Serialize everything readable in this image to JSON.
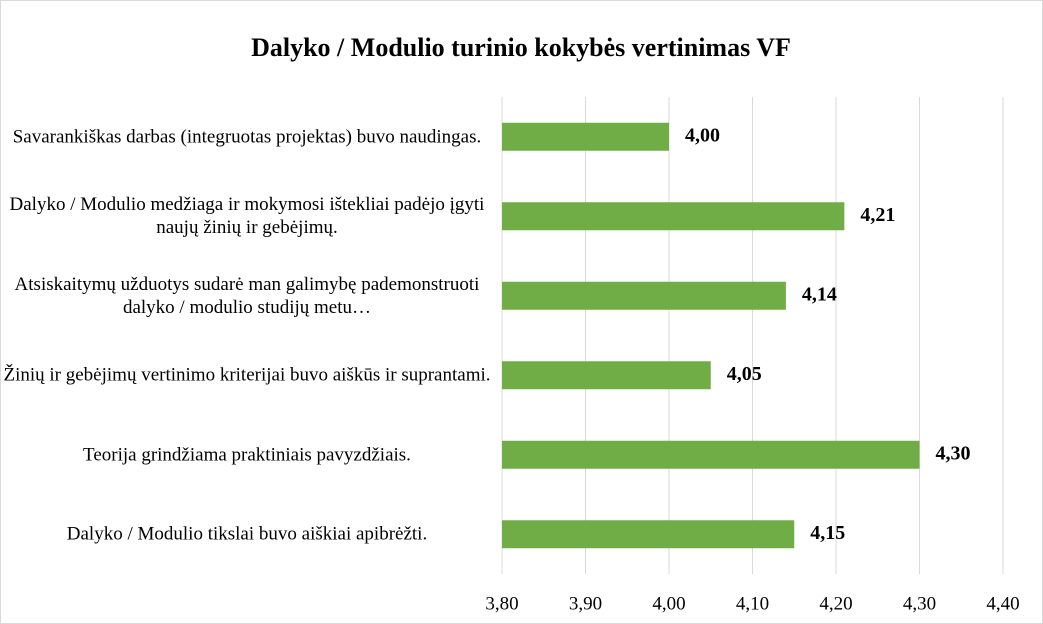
{
  "chart_data": {
    "type": "barh",
    "title": "Dalyko / Modulio turinio kokybės vertinimas VF",
    "categories": [
      "Savarankiškas darbas (integruotas projektas) buvo naudingas.",
      "Dalyko / Modulio medžiaga ir mokymosi ištekliai padėjo įgyti naujų žinių ir gebėjimų.",
      "Atsiskaitymų užduotys sudarė man galimybę pademonstruoti dalyko / modulio studijų metu…",
      "Žinių ir gebėjimų vertinimo kriterijai buvo aiškūs ir suprantami.",
      "Teorija grindžiama praktiniais pavyzdžiais.",
      "Dalyko / Modulio tikslai buvo aiškiai apibrėžti."
    ],
    "values": [
      4.0,
      4.21,
      4.14,
      4.05,
      4.3,
      4.15
    ],
    "value_labels": [
      "4,00",
      "4,21",
      "4,14",
      "4,05",
      "4,30",
      "4,15"
    ],
    "color": "#70ad47",
    "xlim": [
      3.8,
      4.4
    ],
    "xticks": [
      {
        "value": 3.8,
        "label": "3,80"
      },
      {
        "value": 3.9,
        "label": "3,90"
      },
      {
        "value": 4.0,
        "label": "4,00"
      },
      {
        "value": 4.1,
        "label": "4,10"
      },
      {
        "value": 4.2,
        "label": "4,20"
      },
      {
        "value": 4.3,
        "label": "4,30"
      },
      {
        "value": 4.4,
        "label": "4,40"
      }
    ],
    "grid": true
  }
}
